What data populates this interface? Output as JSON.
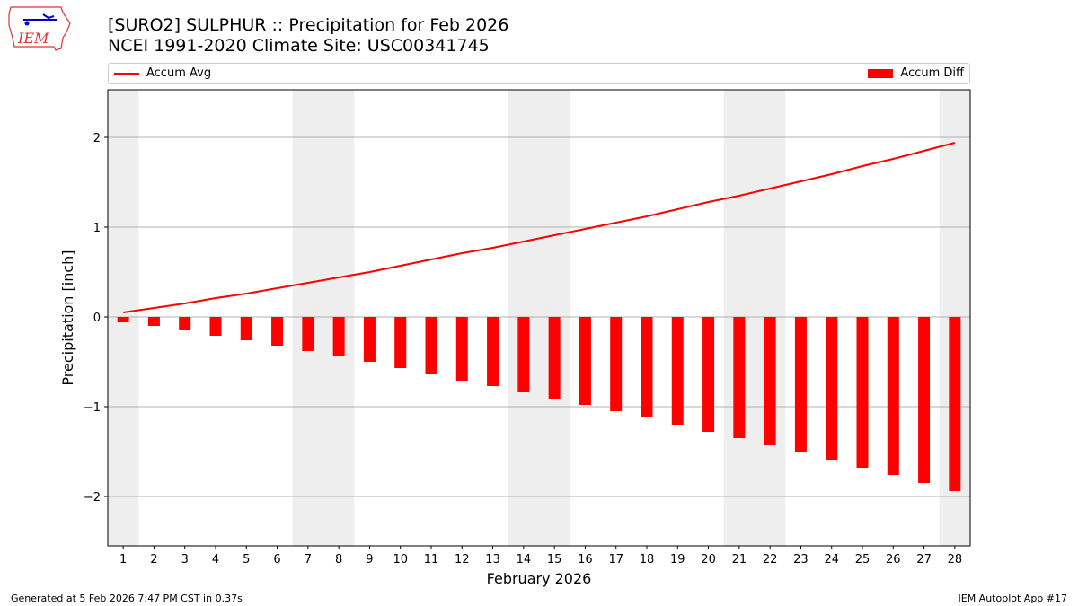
{
  "header": {
    "title_line1": "[SURO2] SULPHUR :: Precipitation for Feb 2026",
    "title_line2": "NCEI 1991-2020 Climate Site: USC00341745"
  },
  "logo": {
    "text": "IEM"
  },
  "footer": {
    "left": "Generated at 5 Feb 2026 7:47 PM CST in 0.37s",
    "right": "IEM Autoplot App #17"
  },
  "legend": {
    "line": "Accum Avg",
    "bar": "Accum Diff"
  },
  "chart_data": {
    "type": "bar+line",
    "xlabel": "February 2026",
    "ylabel": "Precipitation [inch]",
    "x": [
      1,
      2,
      3,
      4,
      5,
      6,
      7,
      8,
      9,
      10,
      11,
      12,
      13,
      14,
      15,
      16,
      17,
      18,
      19,
      20,
      21,
      22,
      23,
      24,
      25,
      26,
      27,
      28
    ],
    "xlim": [
      0.5,
      28.5
    ],
    "ylim": [
      -2.55,
      2.53
    ],
    "yticks": [
      -2,
      -1,
      0,
      1,
      2
    ],
    "ytick_labels": [
      "−2",
      "−1",
      "0",
      "1",
      "2"
    ],
    "grid": "horizontal",
    "legend_placement": "top",
    "weekend_shading_days": [
      1,
      7,
      8,
      14,
      15,
      21,
      22,
      28
    ],
    "series": [
      {
        "name": "Accum Avg",
        "type": "line",
        "color": "#ff0000",
        "values": [
          0.05,
          0.1,
          0.15,
          0.21,
          0.26,
          0.32,
          0.38,
          0.44,
          0.5,
          0.57,
          0.64,
          0.71,
          0.77,
          0.84,
          0.91,
          0.98,
          1.05,
          1.12,
          1.2,
          1.28,
          1.35,
          1.43,
          1.51,
          1.59,
          1.68,
          1.76,
          1.85,
          1.94
        ]
      },
      {
        "name": "Accum Diff",
        "type": "bar",
        "color": "#ff0000",
        "values": [
          -0.06,
          -0.1,
          -0.15,
          -0.21,
          -0.26,
          -0.32,
          -0.38,
          -0.44,
          -0.5,
          -0.57,
          -0.64,
          -0.71,
          -0.77,
          -0.84,
          -0.91,
          -0.98,
          -1.05,
          -1.12,
          -1.2,
          -1.28,
          -1.35,
          -1.43,
          -1.51,
          -1.59,
          -1.68,
          -1.76,
          -1.85,
          -1.94
        ]
      }
    ]
  }
}
